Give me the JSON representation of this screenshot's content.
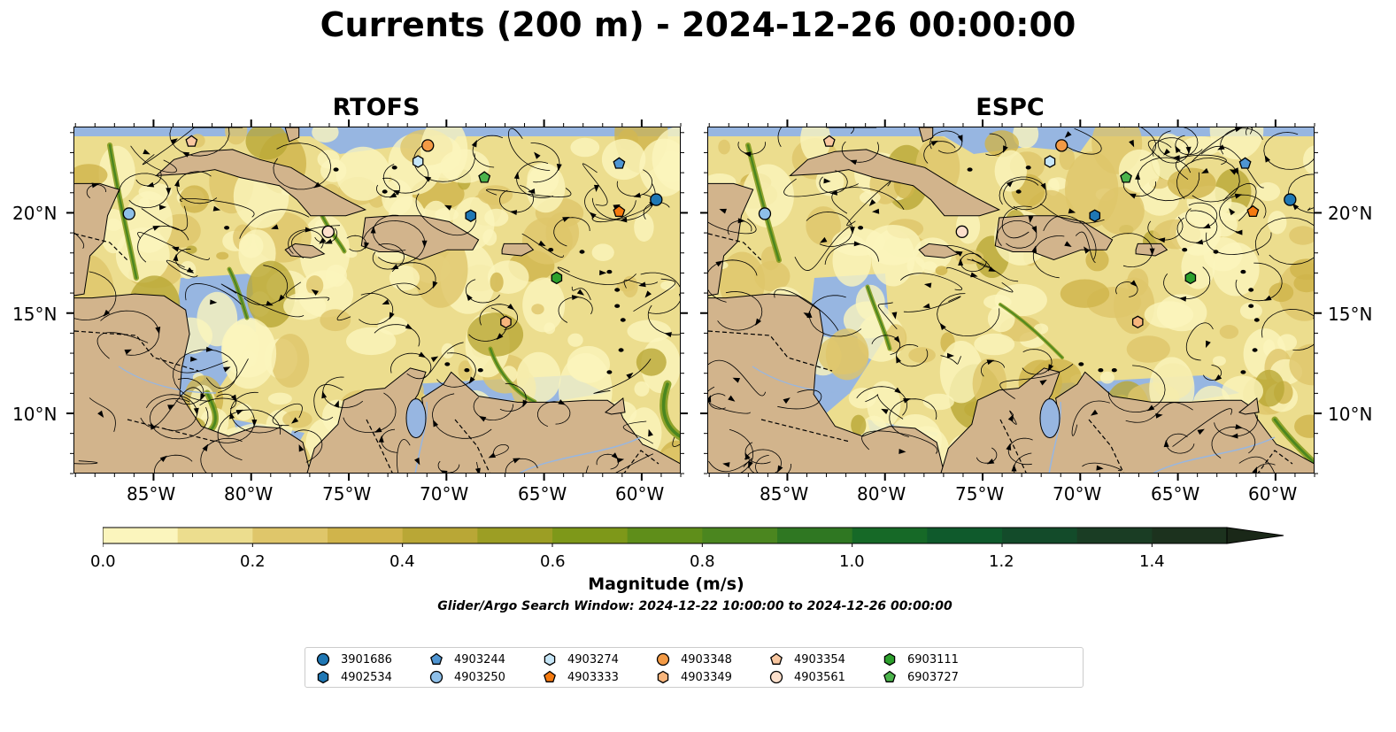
{
  "title": "Currents (200 m) - 2024-12-26 00:00:00",
  "panels": [
    {
      "name": "RTOFS"
    },
    {
      "name": "ESPC"
    }
  ],
  "lat_labels": [
    "20°N",
    "15°N",
    "10°N"
  ],
  "lon_labels": [
    "85°W",
    "80°W",
    "75°W",
    "70°W",
    "65°W",
    "60°W"
  ],
  "colorbar": {
    "label": "Magnitude (m/s)",
    "ticks": [
      "0.0",
      "0.2",
      "0.4",
      "0.6",
      "0.8",
      "1.0",
      "1.2",
      "1.4"
    ],
    "range": [
      0.0,
      1.6
    ],
    "colors": [
      "#fbf5bd",
      "#ecdd8e",
      "#dfc66a",
      "#d0b44b",
      "#b9a736",
      "#9c9e24",
      "#7e9819",
      "#5f8e1a",
      "#4b861f",
      "#2f7722",
      "#166927",
      "#0f5a2c",
      "#134b2a",
      "#1a3d24",
      "#1c321e",
      "#1a2818"
    ]
  },
  "search_window": "Glider/Argo Search Window: 2024-12-22 10:00:00 to 2024-12-26 00:00:00",
  "legend": [
    {
      "id": "3901686",
      "shape": "circle",
      "color": "#1f77b4"
    },
    {
      "id": "4902534",
      "shape": "hexagon",
      "color": "#1f77b4"
    },
    {
      "id": "4903244",
      "shape": "pentagon",
      "color": "#4f95d2"
    },
    {
      "id": "4903250",
      "shape": "circle",
      "color": "#8ebfe8"
    },
    {
      "id": "4903274",
      "shape": "hexagon",
      "color": "#c6e6f7"
    },
    {
      "id": "4903333",
      "shape": "pentagon",
      "color": "#f57a10"
    },
    {
      "id": "4903348",
      "shape": "circle",
      "color": "#f39a45"
    },
    {
      "id": "4903349",
      "shape": "hexagon",
      "color": "#f7b57c"
    },
    {
      "id": "4903354",
      "shape": "pentagon",
      "color": "#f9c7a0"
    },
    {
      "id": "4903561",
      "shape": "circle",
      "color": "#fde0cc"
    },
    {
      "id": "6903111",
      "shape": "hexagon",
      "color": "#2ca02c"
    },
    {
      "id": "6903727",
      "shape": "pentagon",
      "color": "#4cb44c"
    }
  ],
  "floats": {
    "RTOFS": [
      {
        "id": "3901686",
        "lon": -59.3,
        "lat": 20.7
      },
      {
        "id": "4902534",
        "lon": -68.8,
        "lat": 19.9
      },
      {
        "id": "4903244",
        "lon": -61.2,
        "lat": 22.5
      },
      {
        "id": "4903250",
        "lon": -86.3,
        "lat": 20.0
      },
      {
        "id": "4903274",
        "lon": -71.5,
        "lat": 22.6
      },
      {
        "id": "4903333",
        "lon": -61.2,
        "lat": 20.1
      },
      {
        "id": "4903348",
        "lon": -71.0,
        "lat": 23.4
      },
      {
        "id": "4903349",
        "lon": -67.0,
        "lat": 14.6
      },
      {
        "id": "4903354",
        "lon": -83.1,
        "lat": 23.6
      },
      {
        "id": "4903561",
        "lon": -76.1,
        "lat": 19.1
      },
      {
        "id": "6903111",
        "lon": -64.4,
        "lat": 16.8
      },
      {
        "id": "6903727",
        "lon": -68.1,
        "lat": 21.8
      }
    ],
    "ESPC": [
      {
        "id": "3901686",
        "lon": -59.3,
        "lat": 20.7
      },
      {
        "id": "4902534",
        "lon": -69.3,
        "lat": 19.9
      },
      {
        "id": "4903244",
        "lon": -61.6,
        "lat": 22.5
      },
      {
        "id": "4903250",
        "lon": -86.2,
        "lat": 20.0
      },
      {
        "id": "4903274",
        "lon": -71.6,
        "lat": 22.6
      },
      {
        "id": "4903333",
        "lon": -61.2,
        "lat": 20.1
      },
      {
        "id": "4903348",
        "lon": -71.0,
        "lat": 23.4
      },
      {
        "id": "4903349",
        "lon": -67.1,
        "lat": 14.6
      },
      {
        "id": "4903354",
        "lon": -82.9,
        "lat": 23.6
      },
      {
        "id": "4903561",
        "lon": -76.1,
        "lat": 19.1
      },
      {
        "id": "6903111",
        "lon": -64.4,
        "lat": 16.8
      },
      {
        "id": "6903727",
        "lon": -67.7,
        "lat": 21.8
      }
    ]
  },
  "colors": {
    "land": "#d2b48c",
    "water_deep_outside": "#97b6e1",
    "border": "#000000",
    "streamline": "#000000"
  }
}
